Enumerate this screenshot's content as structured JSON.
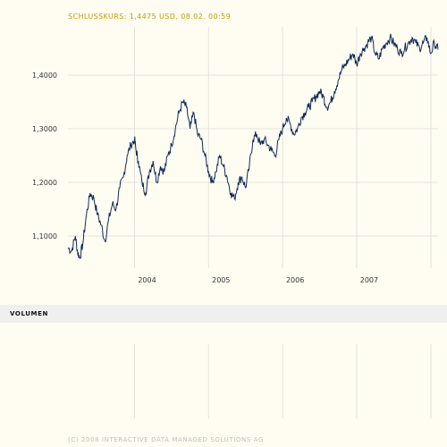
{
  "header": {
    "close_text": "SCHLUSSKURS: 1,4475 USD, 08.02. 00:59"
  },
  "volume": {
    "label": "VOLUMEN"
  },
  "footer": {
    "copyright": "(C) 2008 INTERACTIVE DATA MANAGED SOLUTIONS AG"
  },
  "colors": {
    "line": "#0e2b55",
    "grid": "#e3e3de",
    "tick_text": "#333333"
  },
  "chart_data": {
    "type": "line",
    "title": "",
    "xlabel": "",
    "ylabel": "",
    "grid": true,
    "xlim": [
      2003.1,
      2008.1
    ],
    "ylim": [
      1.04,
      1.49
    ],
    "x_ticks": [
      {
        "value": 2004.0,
        "label": "2004"
      },
      {
        "value": 2005.0,
        "label": "2005"
      },
      {
        "value": 2006.0,
        "label": "2006"
      },
      {
        "value": 2007.0,
        "label": "2007"
      }
    ],
    "y_ticks": [
      {
        "value": 1.1,
        "label": "1,1000"
      },
      {
        "value": 1.2,
        "label": "1,2000"
      },
      {
        "value": 1.3,
        "label": "1,3000"
      },
      {
        "value": 1.4,
        "label": "1,4000"
      }
    ],
    "series": [
      {
        "x": [
          2003.1,
          2003.15,
          2003.2,
          2003.23,
          2003.26,
          2003.3,
          2003.35,
          2003.4,
          2003.45,
          2003.5,
          2003.55,
          2003.6,
          2003.65,
          2003.7,
          2003.75,
          2003.8,
          2003.85,
          2003.9,
          2003.95,
          2004.0,
          2004.02,
          2004.05,
          2004.1,
          2004.15,
          2004.2,
          2004.25,
          2004.3,
          2004.35,
          2004.4,
          2004.45,
          2004.5,
          2004.55,
          2004.6,
          2004.65,
          2004.7,
          2004.75,
          2004.8,
          2004.85,
          2004.9,
          2004.95,
          2005.0,
          2005.05,
          2005.1,
          2005.15,
          2005.2,
          2005.25,
          2005.3,
          2005.35,
          2005.4,
          2005.45,
          2005.5,
          2005.55,
          2005.6,
          2005.65,
          2005.7,
          2005.75,
          2005.8,
          2005.85,
          2005.9,
          2005.95,
          2006.0,
          2006.05,
          2006.1,
          2006.15,
          2006.2,
          2006.25,
          2006.3,
          2006.35,
          2006.4,
          2006.45,
          2006.5,
          2006.55,
          2006.6,
          2006.65,
          2006.7,
          2006.75,
          2006.8,
          2006.85,
          2006.9,
          2006.95,
          2007.0,
          2007.05,
          2007.1,
          2007.15,
          2007.2,
          2007.25,
          2007.3,
          2007.35,
          2007.4,
          2007.45,
          2007.5,
          2007.55,
          2007.6,
          2007.65,
          2007.7,
          2007.75,
          2007.8,
          2007.85,
          2007.9,
          2007.95,
          2008.0,
          2008.05,
          2008.1
        ],
        "values": [
          1.078,
          1.072,
          1.1,
          1.07,
          1.06,
          1.085,
          1.14,
          1.18,
          1.17,
          1.14,
          1.12,
          1.09,
          1.13,
          1.16,
          1.15,
          1.19,
          1.21,
          1.25,
          1.27,
          1.28,
          1.26,
          1.24,
          1.2,
          1.18,
          1.22,
          1.24,
          1.2,
          1.23,
          1.22,
          1.25,
          1.27,
          1.3,
          1.33,
          1.35,
          1.34,
          1.3,
          1.33,
          1.29,
          1.28,
          1.25,
          1.22,
          1.2,
          1.22,
          1.25,
          1.23,
          1.21,
          1.18,
          1.17,
          1.2,
          1.21,
          1.19,
          1.23,
          1.28,
          1.29,
          1.27,
          1.28,
          1.27,
          1.26,
          1.25,
          1.28,
          1.3,
          1.32,
          1.31,
          1.29,
          1.3,
          1.32,
          1.33,
          1.34,
          1.35,
          1.36,
          1.37,
          1.36,
          1.34,
          1.35,
          1.37,
          1.39,
          1.41,
          1.42,
          1.43,
          1.44,
          1.42,
          1.44,
          1.45,
          1.46,
          1.47,
          1.44,
          1.43,
          1.45,
          1.46,
          1.47,
          1.46,
          1.45,
          1.44,
          1.45,
          1.46,
          1.47,
          1.46,
          1.45,
          1.46,
          1.47,
          1.44,
          1.46,
          1.4475
        ]
      }
    ]
  }
}
